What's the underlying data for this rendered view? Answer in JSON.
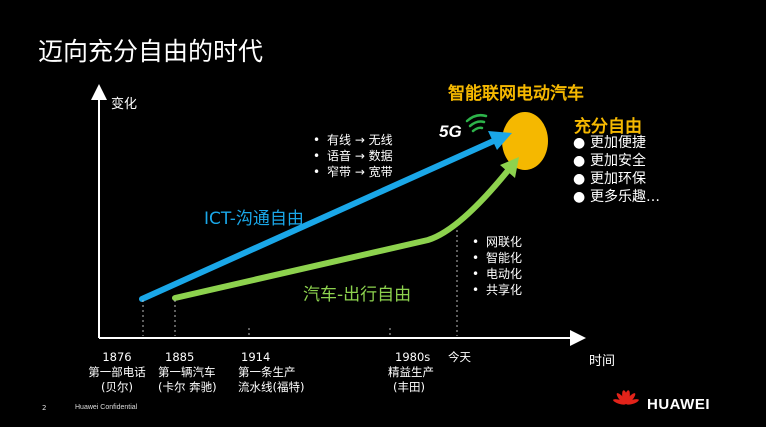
{
  "title": "迈向充分自由的时代",
  "axes": {
    "y_label": "变化",
    "x_label": "时间"
  },
  "ict": {
    "label": "ICT-沟通自由",
    "bullets": [
      "有线 → 无线",
      "语音 → 数据",
      "窄带 → 宽带"
    ],
    "color": "#1aa7e8"
  },
  "car": {
    "label": "汽车-出行自由",
    "bullets": [
      "网联化",
      "智能化",
      "电动化",
      "共享化"
    ],
    "color": "#8dd24e"
  },
  "target": {
    "heading": "智能联网电动汽车",
    "badge": "5G",
    "color": "#f5b800"
  },
  "freedom": {
    "heading": "充分自由",
    "bullets": [
      "更加便捷",
      "更加安全",
      "更加环保",
      "更多乐趣…"
    ]
  },
  "timeline": [
    {
      "year": "1876",
      "line1": "第一部电话",
      "line2": "(贝尔)"
    },
    {
      "year": "1885",
      "line1": "第一辆汽车",
      "line2": "(卡尔 奔驰)"
    },
    {
      "year": "1914",
      "line1": "第一条生产",
      "line2": "流水线(福特)"
    },
    {
      "year": "1980s",
      "line1": "精益生产",
      "line2": "(丰田)"
    },
    {
      "year": "今天",
      "line1": "",
      "line2": ""
    }
  ],
  "footer": {
    "page": "2",
    "confidential": "Huawei Confidential",
    "brand": "HUAWEI"
  }
}
